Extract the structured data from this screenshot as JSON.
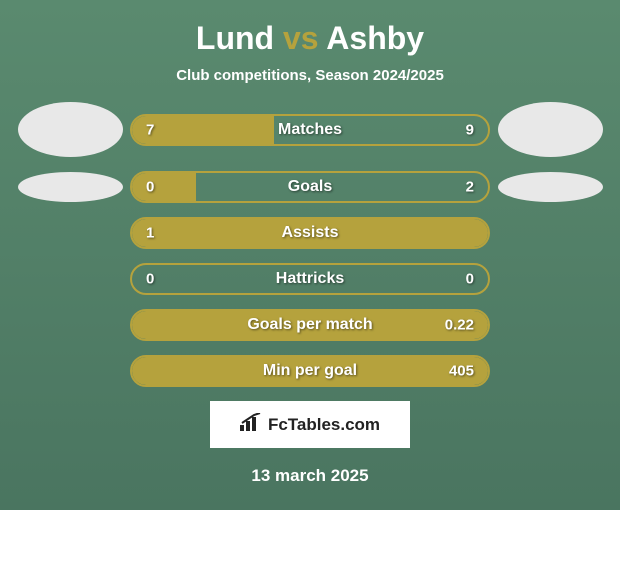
{
  "header": {
    "player1": "Lund",
    "vs": "vs",
    "player2": "Ashby",
    "subtitle": "Club competitions, Season 2024/2025"
  },
  "chart": {
    "type": "comparison-bar",
    "bar_fill_color": "#b5a23d",
    "bar_border_color": "#b5a23d",
    "text_color": "#ffffff",
    "background_gradient_top": "#5a8a6f",
    "background_gradient_bottom": "#4a7560",
    "avatar_height_large": 55,
    "avatar_height_small": 30,
    "rows": [
      {
        "label": "Matches",
        "left_val": "7",
        "right_val": "9",
        "left_pct": 40,
        "right_pct": 0,
        "show_avatar": true,
        "avatar_h": 55
      },
      {
        "label": "Goals",
        "left_val": "0",
        "right_val": "2",
        "left_pct": 18,
        "right_pct": 0,
        "show_avatar": true,
        "avatar_h": 30
      },
      {
        "label": "Assists",
        "left_val": "1",
        "right_val": "",
        "left_pct": 100,
        "right_pct": 0,
        "show_avatar": false
      },
      {
        "label": "Hattricks",
        "left_val": "0",
        "right_val": "0",
        "left_pct": 0,
        "right_pct": 0,
        "show_avatar": false
      },
      {
        "label": "Goals per match",
        "left_val": "",
        "right_val": "0.22",
        "left_pct": 0,
        "right_pct": 100,
        "show_avatar": false
      },
      {
        "label": "Min per goal",
        "left_val": "",
        "right_val": "405",
        "left_pct": 0,
        "right_pct": 100,
        "show_avatar": false
      }
    ]
  },
  "footer": {
    "logo_text": "FcTables.com",
    "date": "13 march 2025"
  }
}
